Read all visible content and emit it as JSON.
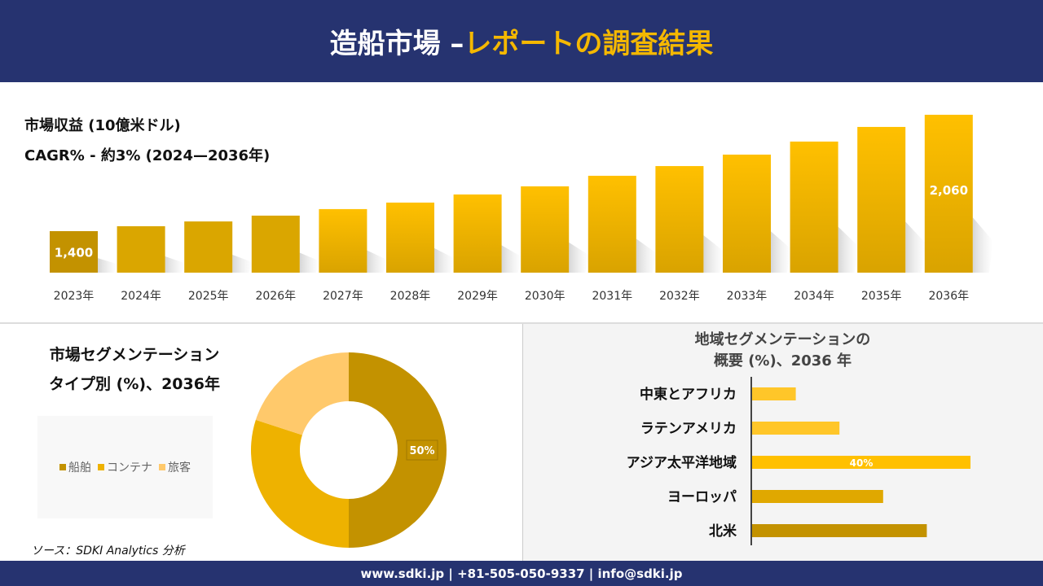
{
  "header": {
    "title_main": "造船市場 –",
    "title_accent": "レポートの調査結果"
  },
  "chart_data": [
    {
      "type": "bar",
      "title": "市場収益 (10億米ドル)",
      "subtitle": "CAGR% - 約3% (2024—2036年)",
      "categories": [
        "2023年",
        "2024年",
        "2025年",
        "2026年",
        "2027年",
        "2028年",
        "2029年",
        "2030年",
        "2031年",
        "2032年",
        "2033年",
        "2034年",
        "2035年",
        "2036年"
      ],
      "values": [
        1400,
        1428,
        1455,
        1488,
        1525,
        1562,
        1608,
        1654,
        1714,
        1769,
        1834,
        1908,
        1991,
        2060
      ],
      "data_labels": {
        "0": "1,400",
        "13": "2,060"
      },
      "colors": {
        "dark": "#c39200",
        "bright": "#ffc000"
      }
    },
    {
      "type": "pie",
      "title": "市場セグメンテーション タイプ別 (%)、2036年",
      "title_lines": [
        "市場セグメンテーション",
        "タイプ別 (%)、2036年"
      ],
      "categories": [
        "船舶",
        "コンテナ",
        "旅客"
      ],
      "values": [
        50,
        30,
        20
      ],
      "colors": [
        "#c39200",
        "#eeb200",
        "#ffc96b"
      ],
      "data_labels": {
        "0": "50%"
      },
      "legend": "left"
    },
    {
      "type": "bar",
      "orientation": "horizontal",
      "title": "地域セグメンテーションの 概要 (%)、2036 年",
      "title_lines": [
        "地域セグメンテーションの",
        "概要 (%)、2036 年"
      ],
      "categories": [
        "中東とアフリカ",
        "ラテンアメリカ",
        "アジア太平洋地域",
        "ヨーロッパ",
        "北米"
      ],
      "values": [
        8,
        16,
        40,
        24,
        32
      ],
      "colors": [
        "#ffc629",
        "#ffc629",
        "#ffc000",
        "#e0a800",
        "#c39200"
      ],
      "data_labels": {
        "2": "40%"
      }
    }
  ],
  "source": "ソース：SDKI Analytics 分析",
  "footer": "www.sdki.jp | +81-505-050-9337 | info@sdki.jp"
}
